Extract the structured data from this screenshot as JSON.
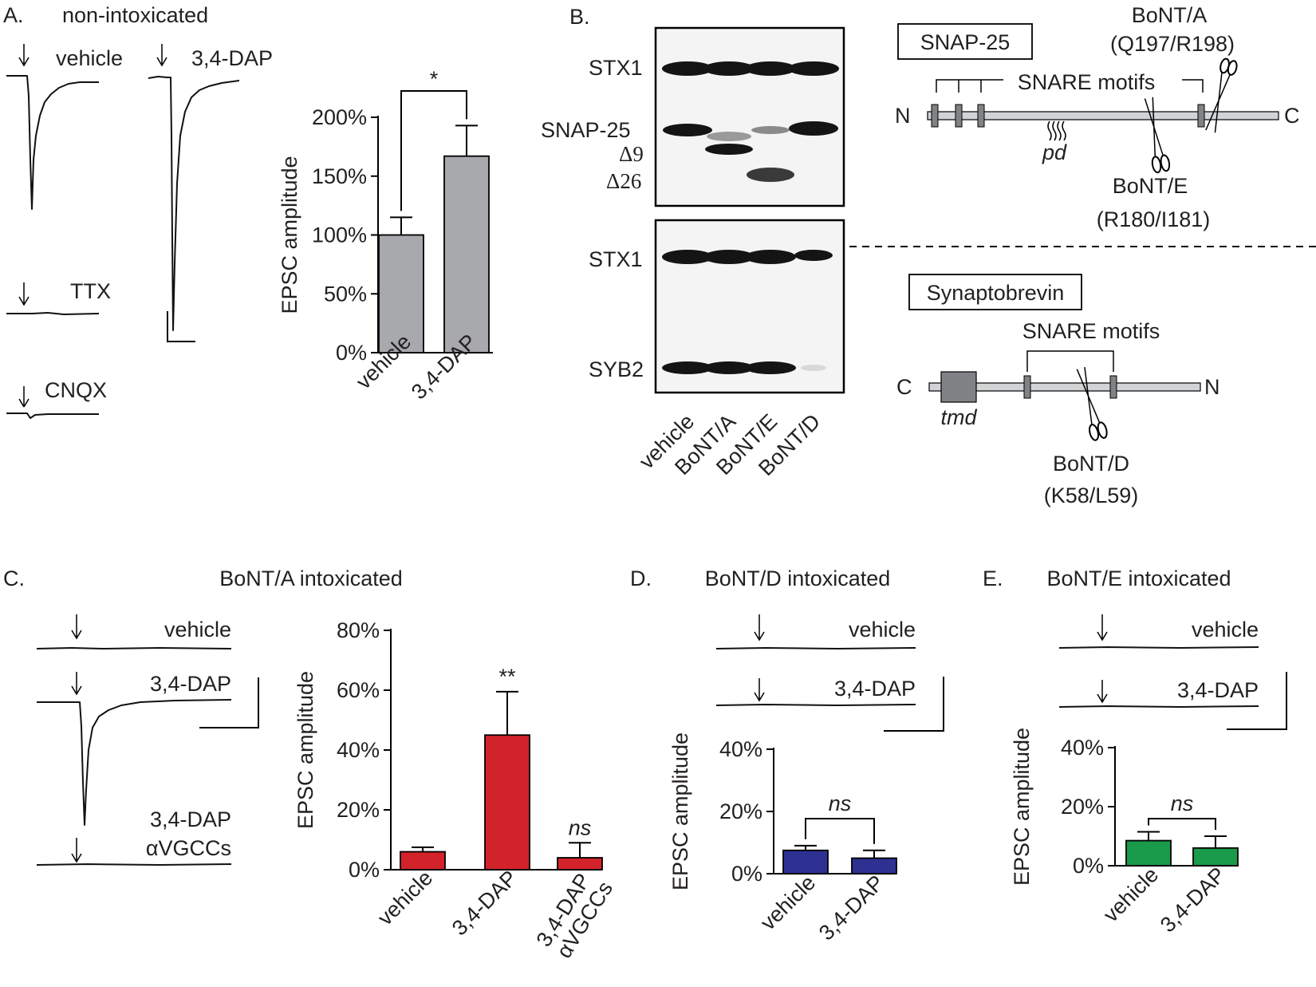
{
  "colors": {
    "red": "#d2232a",
    "green": "#1a9a4b",
    "blue": "#2e3192",
    "gray": "#a7a9ac",
    "black": "#231f20"
  },
  "panelA": {
    "letter": "A.",
    "title": "non-intoxicated",
    "traces": {
      "vehicle": "vehicle",
      "dap": "3,4-DAP",
      "ttx": "TTX",
      "cnqx": "CNQX"
    }
  },
  "panelB": {
    "letter": "B.",
    "blot_top_labels": {
      "stx1": "STX1",
      "snap25": "SNAP-25",
      "d9": "Δ9",
      "d26": "Δ26"
    },
    "blot_bottom_labels": {
      "stx1": "STX1",
      "syb2": "SYB2"
    },
    "lanes": [
      "vehicle",
      "BoNT/A",
      "BoNT/E",
      "BoNT/D"
    ],
    "snap25_box": "SNAP-25",
    "snap25_diagram": {
      "motifs": "SNARE motifs",
      "n": "N",
      "c": "C",
      "pd": "pd",
      "bonta": "BoNT/A",
      "bonta_site": "(Q197/R198)",
      "bonte": "BoNT/E",
      "bonte_site": "(R180/I181)"
    },
    "syb_box": "Synaptobrevin",
    "syb_diagram": {
      "motifs": "SNARE motifs",
      "c": "C",
      "n": "N",
      "tmd": "tmd",
      "bontd": "BoNT/D",
      "bontd_site": "(K58/L59)"
    }
  },
  "panelC": {
    "letter": "C.",
    "title": "BoNT/A intoxicated",
    "traces": {
      "vehicle": "vehicle",
      "dap": "3,4-DAP",
      "dap_vgcc_1": "3,4-DAP",
      "dap_vgcc_2": "αVGCCs"
    }
  },
  "panelD": {
    "letter": "D.",
    "title": "BoNT/D intoxicated",
    "traces": {
      "vehicle": "vehicle",
      "dap": "3,4-DAP"
    }
  },
  "panelE": {
    "letter": "E.",
    "title": "BoNT/E intoxicated",
    "traces": {
      "vehicle": "vehicle",
      "dap": "3,4-DAP"
    }
  },
  "chart_data": [
    {
      "id": "A",
      "type": "bar",
      "ylabel": "EPSC amplitude",
      "ylim": [
        0,
        200
      ],
      "yticks": [
        0,
        50,
        100,
        150,
        200
      ],
      "tick_labels": [
        "0%",
        "50%",
        "100%",
        "150%",
        "200%"
      ],
      "categories": [
        "vehicle",
        "3,4-DAP"
      ],
      "values": [
        100,
        167
      ],
      "errors": [
        15,
        26
      ],
      "color": "#a7a9ac",
      "significance": "*"
    },
    {
      "id": "C",
      "type": "bar",
      "ylabel": "EPSC amplitude",
      "ylim": [
        0,
        80
      ],
      "yticks": [
        0,
        20,
        40,
        60,
        80
      ],
      "tick_labels": [
        "0%",
        "20%",
        "40%",
        "60%",
        "80%"
      ],
      "categories": [
        "vehicle",
        "3,4-DAP",
        "3,4-DAP αVGCCs"
      ],
      "values": [
        6,
        45,
        4
      ],
      "errors": [
        1.5,
        14.5,
        5
      ],
      "color": "#d2232a",
      "annotations": [
        "",
        "**",
        "ns"
      ]
    },
    {
      "id": "D",
      "type": "bar",
      "ylabel": "EPSC amplitude",
      "ylim": [
        0,
        40
      ],
      "yticks": [
        0,
        20,
        40
      ],
      "tick_labels": [
        "0%",
        "20%",
        "40%"
      ],
      "categories": [
        "vehicle",
        "3,4-DAP"
      ],
      "values": [
        7.5,
        5
      ],
      "errors": [
        1.5,
        2.5
      ],
      "color": "#2e3192",
      "significance": "ns"
    },
    {
      "id": "E",
      "type": "bar",
      "ylabel": "EPSC amplitude",
      "ylim": [
        0,
        40
      ],
      "yticks": [
        0,
        20,
        40
      ],
      "tick_labels": [
        "0%",
        "20%",
        "40%"
      ],
      "categories": [
        "vehicle",
        "3,4-DAP"
      ],
      "values": [
        8.5,
        6
      ],
      "errors": [
        3,
        4
      ],
      "color": "#1a9a4b",
      "significance": "ns"
    }
  ]
}
